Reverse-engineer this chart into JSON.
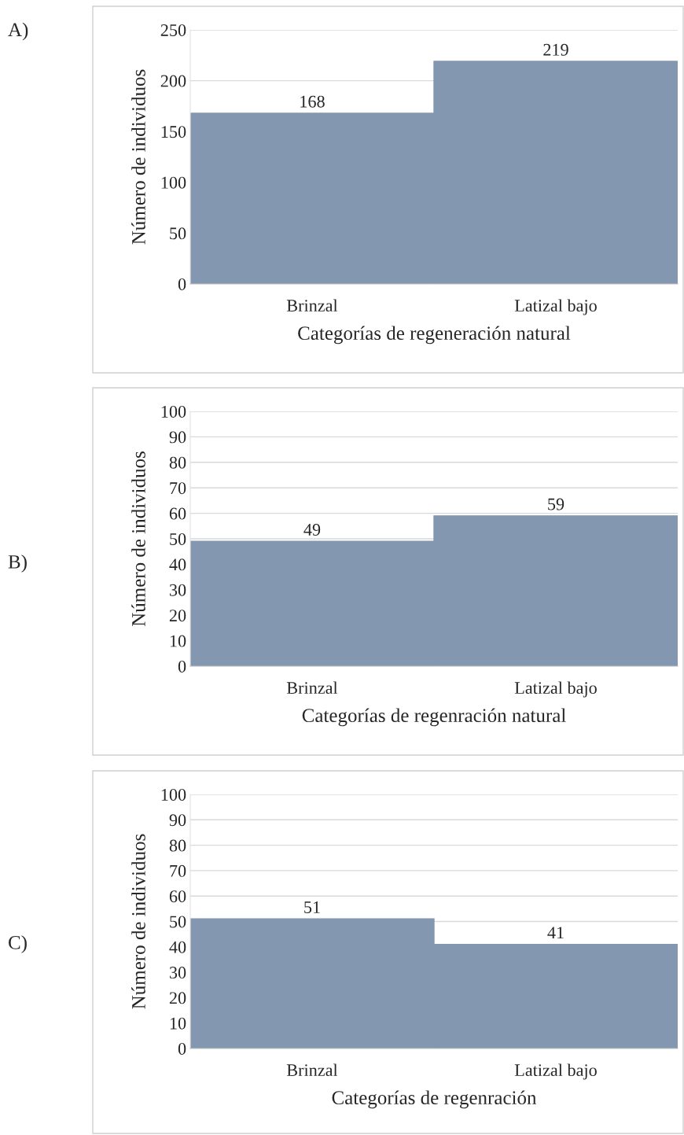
{
  "chart_data": [
    {
      "type": "bar",
      "annotations": [
        "A)"
      ],
      "categories": [
        "Brinzal",
        "Latizal bajo"
      ],
      "values": [
        168,
        219
      ],
      "color": "#8497b0",
      "xlabel": "Categorías de regeneración natural",
      "ylabel": "Número de individuos",
      "ylim": [
        0,
        250
      ],
      "yticks": [
        0,
        50,
        100,
        150,
        200,
        250
      ],
      "grid": "y",
      "data_labels": true
    },
    {
      "type": "bar",
      "annotations": [
        "B)"
      ],
      "categories": [
        "Brinzal",
        "Latizal bajo"
      ],
      "values": [
        49,
        59
      ],
      "color": "#8497b0",
      "xlabel": "Categorías de regenración natural",
      "ylabel": "Número de individuos",
      "ylim": [
        0,
        100
      ],
      "yticks": [
        0,
        10,
        20,
        30,
        40,
        50,
        60,
        70,
        80,
        90,
        100
      ],
      "grid": "y",
      "data_labels": true
    },
    {
      "type": "bar",
      "annotations": [
        "C)"
      ],
      "categories": [
        "Brinzal",
        "Latizal bajo"
      ],
      "values": [
        51,
        41
      ],
      "color": "#8497b0",
      "xlabel": "Categorías de regenración",
      "ylabel": "Número de individuos",
      "ylim": [
        0,
        100
      ],
      "yticks": [
        0,
        10,
        20,
        30,
        40,
        50,
        60,
        70,
        80,
        90,
        100
      ],
      "grid": "y",
      "data_labels": true
    }
  ]
}
